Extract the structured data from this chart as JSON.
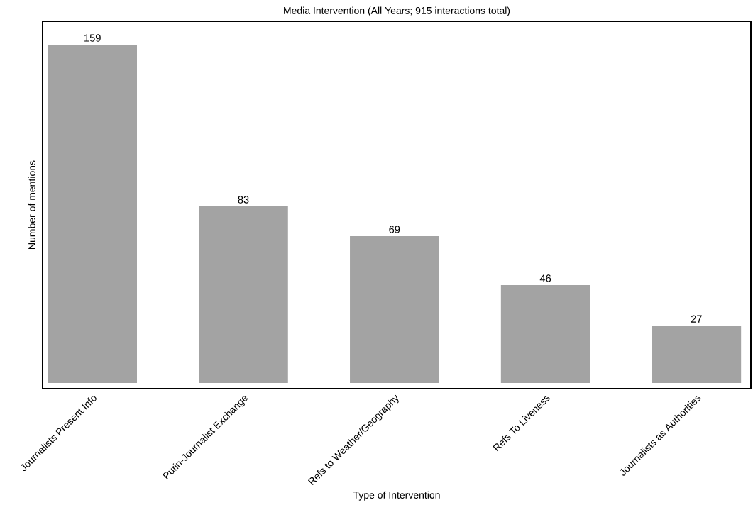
{
  "chart_data": {
    "type": "bar",
    "title": "Media Intervention (All Years; 915 interactions total)",
    "xlabel": "Type of Intervention",
    "ylabel": "Number of mentions",
    "categories": [
      "Journalists Present Info",
      "Putin-Journalist Exchange",
      "Refs to Weather/Geography",
      "Refs To Liveness",
      "Journalists as Authorities"
    ],
    "values": [
      159,
      83,
      69,
      46,
      27
    ],
    "color": "#a3a3a3",
    "ylim": [
      -2.7,
      170
    ],
    "data_labels": true
  }
}
